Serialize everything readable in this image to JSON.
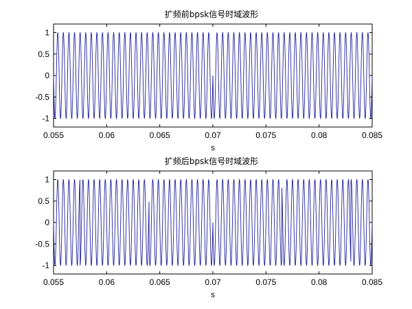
{
  "chart_data": [
    {
      "type": "line",
      "title": "扩频前bpsk信号时域波形",
      "xlabel": "s",
      "ylabel": "",
      "xlim": [
        0.055,
        0.085
      ],
      "ylim": [
        -1.2,
        1.2
      ],
      "xticks": [
        "0.055",
        "0.06",
        "0.065",
        "0.07",
        "0.075",
        "0.08",
        "0.085"
      ],
      "yticks": [
        "1",
        "0.5",
        "0",
        "-0.5",
        "-1"
      ],
      "series": [
        {
          "color": "#1f1f9f",
          "waveform": "sinusoid",
          "amplitude": 1,
          "frequency_hz": 1900,
          "phase_flips_at_s": [
            0.07
          ]
        }
      ],
      "grid": false,
      "legend": "none"
    },
    {
      "type": "line",
      "title": "扩频后bpsk信号时域波形",
      "xlabel": "s",
      "ylabel": "",
      "xlim": [
        0.055,
        0.085
      ],
      "ylim": [
        -1.2,
        1.2
      ],
      "xticks": [
        "0.055",
        "0.06",
        "0.065",
        "0.07",
        "0.075",
        "0.08",
        "0.085"
      ],
      "yticks": [
        "1",
        "0.5",
        "0",
        "-0.5",
        "-1"
      ],
      "series": [
        {
          "color": "#1f1f9f",
          "waveform": "sinusoid",
          "amplitude": 1,
          "frequency_hz": 1900,
          "phase_flips_at_s": [
            0.0575,
            0.064,
            0.07,
            0.0765,
            0.083
          ]
        }
      ],
      "grid": false,
      "legend": "none"
    }
  ]
}
